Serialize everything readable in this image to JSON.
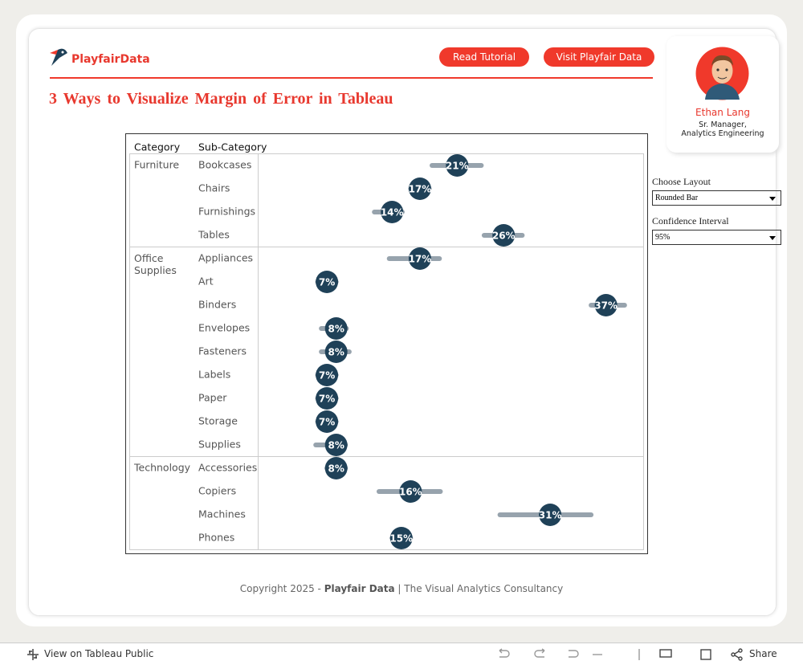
{
  "header": {
    "logo": "PlayfairData",
    "buttons": [
      "Read Tutorial",
      "Visit Playfair Data"
    ],
    "title": "3 Ways to Visualize Margin of Error in Tableau"
  },
  "profile": {
    "name": "Ethan Lang",
    "role": [
      "Sr. Manager,",
      "Analytics Engineering"
    ]
  },
  "controls": [
    {
      "label": "Choose Layout",
      "value": "Rounded Bar"
    },
    {
      "label": "Confidence Interval",
      "value": "95%"
    }
  ],
  "footer": [
    "Copyright 2025 - ",
    "Playfair Data",
    "| The Visual Analytics Consultancy"
  ],
  "toolbar": {
    "left": "View on Tableau Public",
    "right": "Share"
  },
  "chart_data": {
    "type": "dot-interval",
    "column_headers": [
      "Category",
      "Sub-Category"
    ],
    "group": [
      "Furniture",
      null,
      null,
      null,
      "Office Supplies",
      null,
      null,
      null,
      null,
      null,
      null,
      null,
      null,
      "Technology",
      null,
      null,
      null
    ],
    "categories": [
      "Bookcases",
      "Chairs",
      "Furnishings",
      "Tables",
      "Appliances",
      "Art",
      "Binders",
      "Envelopes",
      "Fasteners",
      "Labels",
      "Paper",
      "Storage",
      "Supplies",
      "Accessories",
      "Copiers",
      "Machines",
      "Phones"
    ],
    "values": [
      21,
      17,
      14,
      26,
      17,
      7,
      37,
      8,
      8,
      7,
      7,
      7,
      8,
      8,
      16,
      31,
      15
    ],
    "value_labels": [
      "21%",
      "17%",
      "14%",
      "26%",
      "17%",
      "7%",
      "37%",
      "8%",
      "8%",
      "7%",
      "7%",
      "7%",
      "8%",
      "8%",
      "16%",
      "31%",
      "15%"
    ],
    "low": [
      18.3,
      16,
      12.1,
      23.9,
      13.7,
      6,
      35.4,
      6.4,
      6.4,
      6,
      6,
      6,
      5.8,
      7,
      12.6,
      25.6,
      14
    ],
    "high": [
      23.6,
      18,
      15.1,
      28,
      19.1,
      8,
      39,
      9.1,
      9.4,
      8,
      8,
      8,
      9,
      9,
      19.2,
      35.4,
      16
    ],
    "xlim": [
      0,
      41
    ],
    "dot_color": "#1f4158",
    "bar_color": "#97a3ad"
  }
}
